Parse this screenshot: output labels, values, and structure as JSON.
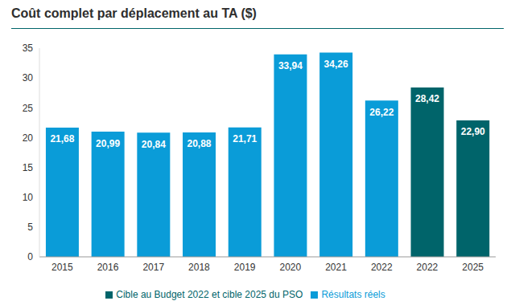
{
  "chart_data": {
    "type": "bar",
    "title": "Coût complet par déplacement au TA ($)",
    "categories": [
      "2015",
      "2016",
      "2017",
      "2018",
      "2019",
      "2020",
      "2021",
      "2022",
      "2022",
      "2025"
    ],
    "series": [
      {
        "name": "Résultats réels",
        "color": "#0a9cd8",
        "values": [
          21.68,
          20.99,
          20.84,
          20.88,
          21.71,
          33.94,
          34.26,
          26.22,
          null,
          null
        ],
        "value_labels": [
          "21,68",
          "20,99",
          "20,84",
          "20,88",
          "21,71",
          "33,94",
          "34,26",
          "26,22",
          null,
          null
        ]
      },
      {
        "name": "Cible au Budget 2022 et cible 2025 du PSO",
        "color": "#00646a",
        "values": [
          null,
          null,
          null,
          null,
          null,
          null,
          null,
          null,
          28.42,
          22.9
        ],
        "value_labels": [
          null,
          null,
          null,
          null,
          null,
          null,
          null,
          null,
          "28,42",
          "22,90"
        ]
      }
    ],
    "stacked": true,
    "data_labels": true,
    "grid": false,
    "legend": "bottom",
    "ylim": [
      0,
      35
    ],
    "yticks": [
      0,
      5,
      10,
      15,
      20,
      25,
      30,
      35
    ]
  }
}
